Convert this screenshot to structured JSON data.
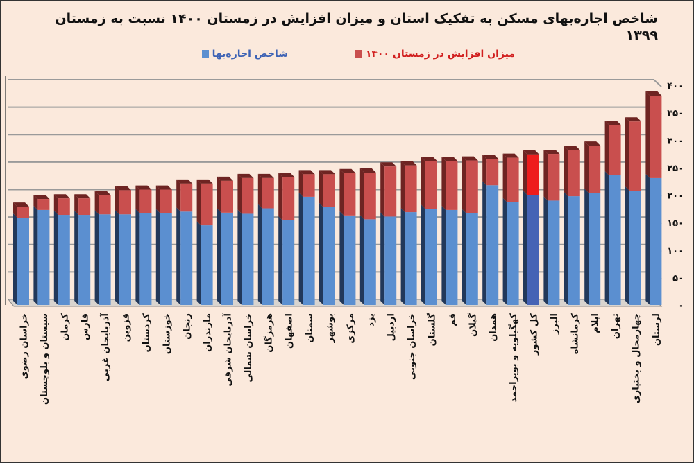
{
  "chart_data": {
    "type": "bar",
    "stacked": true,
    "title": "شاخص اجاره‌بهای مسکن به تفکیک استان و میزان افزایش در زمستان ۱۴۰۰ نسبت به زمستان ۱۳۹۹",
    "xlabel": "",
    "ylabel": "",
    "ylim": [
      0,
      400
    ],
    "yticks": [
      0,
      50,
      100,
      150,
      200,
      250,
      300,
      350,
      400
    ],
    "ytick_labels": [
      "۰",
      "۵۰",
      "۱۰۰",
      "۱۵۰",
      "۲۰۰",
      "۲۵۰",
      "۳۰۰",
      "۳۵۰",
      "۴۰۰"
    ],
    "grid": true,
    "legend_position": "top",
    "highlight_category": "کل کشور",
    "categories": [
      "خراسان رضوی",
      "سیستان و بلوچستان",
      "کرمان",
      "فارس",
      "آذربایجان غربی",
      "قزوین",
      "کردستان",
      "خوزستان",
      "زنجان",
      "مازندران",
      "آذربایجان شرقی",
      "خراسان شمالی",
      "هرمزگان",
      "اصفهان",
      "سمنان",
      "بوشهر",
      "مرکزی",
      "یزد",
      "اردبیل",
      "خراسان جنوبی",
      "گلستان",
      "قم",
      "گیلان",
      "همدان",
      "کهگیلویه و بویراحمد",
      "کل کشور",
      "البرز",
      "کرمانشاه",
      "ایلام",
      "تهران",
      "چهارمحال و بختیاری",
      "لرستان"
    ],
    "series": [
      {
        "name": "شاخص اجاره‌بها",
        "color": "#5b8fd0",
        "values": [
          159,
          173,
          164,
          164,
          165,
          165,
          167,
          167,
          170,
          145,
          168,
          166,
          176,
          154,
          197,
          178,
          163,
          156,
          161,
          169,
          175,
          173,
          167,
          218,
          187,
          200,
          190,
          198,
          204,
          236,
          208,
          231
        ]
      },
      {
        "name": "میزان افزایش در زمستان ۱۴۰۰",
        "color": "#c94f4e",
        "values": [
          20,
          20,
          30,
          30,
          35,
          44,
          43,
          43,
          51,
          76,
          58,
          65,
          55,
          79,
          41,
          60,
          77,
          85,
          91,
          85,
          87,
          89,
          96,
          48,
          81,
          74,
          85,
          84,
          86,
          92,
          126,
          150
        ]
      }
    ]
  },
  "colors": {
    "background": "#fbe9dc",
    "blue": "#5b8fd0",
    "blue_side": "#22385a",
    "red": "#c94f4e",
    "red_top": "#6e2422",
    "highlight_blue": "#4563b5",
    "highlight_red": "#ee1c1c"
  }
}
